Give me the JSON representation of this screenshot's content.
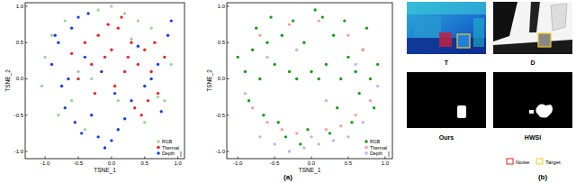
{
  "chart_data": [
    {
      "type": "scatter",
      "xlabel": "TSNE_1",
      "ylabel": "TSNE_2",
      "xlim": [
        -1.3,
        1.1
      ],
      "ylim": [
        -1.1,
        1.05
      ],
      "xticks": [
        {
          "value": -1,
          "label": "-1.0"
        },
        -0.5,
        {
          "value": 0,
          "label": "0.0"
        },
        0.5,
        {
          "value": 1,
          "label": "1.0"
        }
      ],
      "yticks": [
        {
          "value": -1,
          "label": "-1.0"
        },
        -0.5,
        {
          "value": 0,
          "label": "0.0"
        },
        0.5,
        {
          "value": 1,
          "label": "1.0"
        }
      ],
      "grid": false,
      "legend": "lower right",
      "series": [
        {
          "name": "RGB",
          "color": "#9fd39f",
          "marker": "circle",
          "x": [
            -1.0,
            -0.9,
            -0.7,
            -0.6,
            -0.4,
            -0.2,
            0.0,
            0.2,
            0.4,
            0.6,
            0.8,
            0.9,
            -1.05,
            -0.8,
            -0.3,
            0.1,
            0.5,
            0.7,
            -0.5,
            0.3
          ],
          "values": [
            0.3,
            0.6,
            0.8,
            -0.3,
            -0.7,
            0.95,
            1.0,
            0.9,
            0.8,
            0.7,
            -0.3,
            0.2,
            -0.1,
            -0.5,
            0.0,
            -0.3,
            -0.6,
            -0.25,
            0.1,
            0.55
          ]
        },
        {
          "name": "Thermal",
          "color": "#e02a2a",
          "marker": "circle",
          "x": [
            -0.4,
            -0.3,
            -0.2,
            -0.1,
            0.0,
            0.1,
            0.2,
            0.3,
            0.4,
            0.5,
            0.6,
            0.7,
            0.8,
            -0.5,
            -0.25,
            0.05,
            0.35,
            0.55,
            0.15,
            -0.05,
            0.25,
            0.45,
            0.65,
            -0.6
          ],
          "values": [
            0.5,
            0.2,
            0.6,
            0.3,
            0.4,
            0.7,
            0.1,
            0.5,
            0.2,
            0.4,
            0.1,
            -0.2,
            0.3,
            0.0,
            -0.2,
            -0.1,
            -0.4,
            -0.3,
            0.85,
            0.75,
            0.3,
            -0.5,
            0.5,
            0.35
          ]
        },
        {
          "name": "Depth",
          "color": "#1f3fe0",
          "marker": "circle",
          "x": [
            -0.9,
            -0.8,
            -0.75,
            -0.6,
            -0.5,
            -0.4,
            -0.3,
            -0.2,
            -0.1,
            0.0,
            0.1,
            0.3,
            0.5,
            0.7,
            0.85,
            0.9,
            -0.7,
            -0.55,
            -0.35,
            -0.15,
            0.05,
            0.2,
            0.4,
            0.6,
            0.75,
            -0.85,
            -0.65,
            -0.45
          ],
          "values": [
            0.2,
            0.5,
            -0.1,
            0.7,
            0.85,
            0.3,
            -0.5,
            -0.8,
            -0.95,
            -0.85,
            -0.7,
            -0.3,
            -0.1,
            0.2,
            0.6,
            0.8,
            -0.4,
            -0.6,
            0.9,
            0.1,
            -0.2,
            -0.55,
            0.45,
            0.0,
            -0.45,
            0.6,
            0.0,
            -0.75
          ]
        }
      ]
    },
    {
      "type": "scatter",
      "xlabel": "TSNE_1",
      "ylabel": "TSNE_2",
      "xlim": [
        -1.15,
        1.1
      ],
      "ylim": [
        -1.1,
        1.05
      ],
      "xticks": [
        {
          "value": -1,
          "label": "-1.0"
        },
        -0.5,
        {
          "value": 0,
          "label": "0.0"
        },
        0.5,
        {
          "value": 1,
          "label": "1.0"
        }
      ],
      "yticks": [
        {
          "value": -1,
          "label": "-1.0"
        },
        -0.5,
        {
          "value": 0,
          "label": "0.0"
        },
        0.5,
        {
          "value": 1,
          "label": "1.0"
        }
      ],
      "grid": false,
      "legend": "lower right",
      "series": [
        {
          "name": "RGB",
          "color": "#1c9a1c",
          "marker": "circle",
          "x": [
            -1.0,
            -0.9,
            -0.8,
            -0.7,
            -0.6,
            -0.5,
            -0.4,
            -0.3,
            -0.2,
            -0.1,
            0.0,
            0.1,
            0.2,
            0.3,
            0.4,
            0.5,
            0.6,
            0.7,
            0.8,
            0.9,
            -0.85,
            -0.65,
            -0.45,
            -0.25,
            -0.05,
            0.15,
            0.35,
            0.55,
            0.75,
            -0.75,
            -0.35,
            0.05,
            0.45,
            0.85,
            -0.55,
            -0.15,
            0.25,
            0.65
          ],
          "values": [
            0.3,
            0.1,
            0.4,
            0.0,
            0.5,
            0.2,
            0.6,
            0.1,
            0.0,
            0.5,
            0.1,
            0.0,
            0.2,
            0.6,
            0.0,
            0.3,
            0.1,
            0.4,
            0.0,
            0.2,
            -0.3,
            -0.5,
            -0.6,
            0.8,
            -0.7,
            0.85,
            -0.4,
            -0.6,
            0.7,
            0.7,
            -0.8,
            0.95,
            0.8,
            -0.4,
            0.85,
            -0.9,
            -0.75,
            -0.2
          ]
        },
        {
          "name": "Thermal",
          "color": "#f2a3a3",
          "marker": "circle",
          "x": [
            -0.8,
            -0.6,
            -0.4,
            -0.2,
            0.0,
            0.2,
            0.4,
            0.6,
            0.8,
            -0.7,
            -0.3,
            0.1,
            0.5,
            0.7
          ],
          "values": [
            -0.4,
            -0.6,
            -0.7,
            -0.75,
            -0.8,
            -0.7,
            -0.65,
            -0.5,
            -0.3,
            0.6,
            0.75,
            0.8,
            0.6,
            0.4
          ]
        },
        {
          "name": "Depth",
          "color": "#c4b4e4",
          "marker": "circle",
          "x": [
            -0.9,
            -0.7,
            -0.5,
            -0.3,
            -0.1,
            0.1,
            0.3,
            0.5,
            0.7,
            0.9,
            -0.6,
            -0.2,
            0.2,
            0.6
          ],
          "values": [
            -0.2,
            -0.8,
            -0.9,
            -1.0,
            -0.95,
            -0.9,
            -0.85,
            -0.8,
            -0.6,
            -0.1,
            0.3,
            0.4,
            -0.3,
            0.2
          ]
        }
      ]
    }
  ],
  "figure": {
    "panel_labels": [
      "(a)",
      "(b)"
    ],
    "images": [
      {
        "label": "T"
      },
      {
        "label": "D"
      },
      {
        "label": "Ours"
      },
      {
        "label": "HWSI"
      }
    ],
    "legend": [
      {
        "label": "Noise",
        "color": "#e02020"
      },
      {
        "label": "Target",
        "color": "#f2cf1d"
      }
    ]
  }
}
